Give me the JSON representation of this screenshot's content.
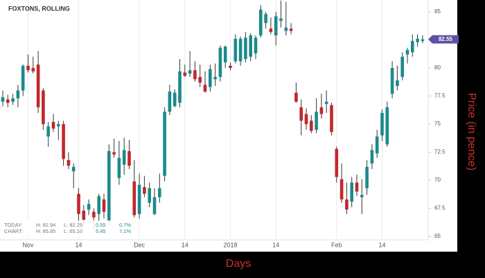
{
  "chart_data": {
    "type": "candlestick",
    "title": "FOXTONS, ROLLING",
    "x_label": "Days",
    "y_label": "Price (in pence)",
    "categories": [
      null,
      null,
      null,
      null,
      null,
      "Nov",
      null,
      null,
      null,
      null,
      null,
      null,
      null,
      null,
      null,
      "14",
      null,
      null,
      null,
      null,
      null,
      null,
      null,
      null,
      null,
      null,
      null,
      "Dec",
      null,
      null,
      null,
      null,
      null,
      null,
      null,
      null,
      "14",
      null,
      null,
      null,
      null,
      null,
      null,
      null,
      null,
      "2018",
      null,
      null,
      null,
      null,
      null,
      null,
      null,
      null,
      "14",
      null,
      null,
      null,
      null,
      null,
      null,
      null,
      null,
      null,
      null,
      null,
      "Feb",
      null,
      null,
      null,
      null,
      null,
      null,
      null,
      null,
      "14",
      null,
      null,
      null,
      null,
      null,
      null,
      null,
      null
    ],
    "open": [
      77.0,
      77.2,
      77.0,
      77.3,
      78.0,
      80.2,
      80.0,
      80.3,
      78.0,
      73.9,
      75.2,
      74.8,
      75.0,
      71.8,
      70.8,
      68.8,
      67.3,
      67.4,
      67.2,
      67.0,
      68.3,
      66.4,
      72.5,
      70.2,
      71.4,
      72.6,
      69.9,
      67.0,
      69.4,
      68.0,
      67.0,
      68.5,
      70.4,
      76.1,
      76.6,
      76.9,
      79.6,
      79.5,
      79.8,
      79.2,
      78.5,
      78.3,
      79.0,
      79.2,
      80.5,
      80.2,
      80.6,
      80.6,
      80.8,
      81.0,
      81.3,
      82.9,
      84.0,
      83.5,
      82.9,
      84.2,
      83.3,
      83.5,
      77.8,
      76.5,
      75.9,
      75.3,
      74.5,
      76.5,
      76.8,
      76.7,
      72.8,
      70.1,
      68.3,
      68.1,
      69.8,
      68.5,
      69.3,
      71.5,
      72.4,
      74.0,
      73.2,
      77.7,
      78.4,
      79.2,
      81.2,
      81.4,
      82.3,
      82.4
    ],
    "high": [
      78.0,
      77.6,
      77.7,
      78.5,
      80.3,
      81.2,
      81.0,
      81.5,
      78.2,
      75.2,
      75.9,
      75.3,
      75.3,
      72.5,
      71.5,
      69.3,
      67.8,
      68.3,
      67.5,
      68.8,
      68.8,
      73.2,
      73.7,
      73.5,
      73.8,
      73.6,
      71.8,
      70.6,
      70.4,
      69.8,
      69.3,
      70.6,
      76.5,
      78.5,
      78.1,
      80.8,
      80.3,
      81.5,
      80.6,
      80.3,
      79.7,
      80.3,
      80.4,
      82.0,
      82.0,
      80.5,
      83.0,
      82.8,
      83.2,
      83.1,
      82.9,
      85.6,
      85.0,
      84.5,
      85.0,
      86.0,
      85.9,
      84.0,
      78.7,
      77.2,
      76.4,
      75.8,
      77.3,
      77.7,
      78.0,
      76.9,
      73.0,
      71.5,
      69.8,
      70.3,
      70.5,
      70.1,
      71.8,
      73.2,
      74.5,
      76.3,
      77.0,
      80.6,
      80.2,
      81.4,
      81.8,
      83.0,
      83.0,
      82.9
    ],
    "low": [
      76.6,
      76.5,
      76.7,
      76.5,
      77.5,
      79.6,
      79.5,
      76.0,
      74.5,
      73.0,
      74.3,
      73.6,
      71.3,
      71.0,
      69.3,
      66.2,
      66.0,
      66.9,
      65.6,
      66.2,
      66.6,
      66.0,
      72.0,
      69.6,
      70.5,
      71.0,
      66.7,
      66.6,
      68.5,
      67.6,
      66.9,
      68.0,
      69.9,
      75.8,
      76.5,
      76.5,
      79.2,
      79.2,
      78.8,
      78.3,
      77.8,
      77.9,
      78.4,
      78.8,
      80.0,
      79.8,
      80.4,
      80.2,
      80.5,
      80.6,
      80.8,
      82.7,
      83.5,
      83.0,
      82.0,
      83.6,
      82.9,
      83.0,
      76.9,
      74.0,
      74.5,
      74.2,
      74.2,
      75.5,
      76.0,
      74.0,
      69.8,
      68.0,
      67.0,
      67.6,
      68.6,
      67.0,
      68.7,
      71.0,
      72.0,
      73.5,
      73.0,
      77.3,
      78.0,
      78.9,
      80.4,
      81.0,
      81.9,
      82.2
    ],
    "close": [
      77.4,
      76.9,
      77.3,
      78.0,
      80.2,
      79.8,
      79.7,
      76.5,
      75.0,
      74.8,
      74.6,
      75.0,
      71.9,
      71.3,
      71.2,
      67.0,
      66.5,
      67.9,
      66.7,
      68.6,
      67.2,
      72.6,
      72.3,
      72.0,
      72.7,
      71.3,
      66.9,
      69.6,
      68.8,
      69.3,
      68.5,
      69.3,
      76.1,
      77.9,
      77.8,
      79.7,
      79.3,
      79.8,
      79.0,
      78.7,
      77.9,
      79.9,
      79.2,
      81.8,
      81.9,
      80.0,
      82.6,
      82.6,
      82.7,
      82.9,
      82.7,
      85.2,
      84.8,
      83.2,
      84.6,
      84.4,
      83.6,
      83.3,
      77.0,
      75.3,
      75.0,
      74.4,
      76.1,
      75.9,
      77.0,
      74.3,
      70.3,
      68.3,
      67.4,
      69.8,
      69.0,
      68.7,
      71.2,
      72.7,
      73.9,
      76.0,
      76.5,
      80.0,
      78.9,
      81.0,
      81.6,
      82.4,
      82.6,
      82.55
    ],
    "up_color": "#1b8a8c",
    "down_color": "#c1272d",
    "badge_color": "#5b52a3",
    "ylim": [
      64.7,
      86.05
    ],
    "yticks": [
      65,
      67.5,
      70,
      72.5,
      75,
      77.5,
      80,
      85
    ],
    "x_grid": true,
    "info": {
      "today": [
        "TODAY:",
        "H: 82.94",
        "L: 82.25",
        "0.55",
        "0.7%"
      ],
      "chart": [
        "CHART:",
        "H: 85.85",
        "L: 65.10",
        "5.45",
        "7.1%"
      ]
    }
  }
}
